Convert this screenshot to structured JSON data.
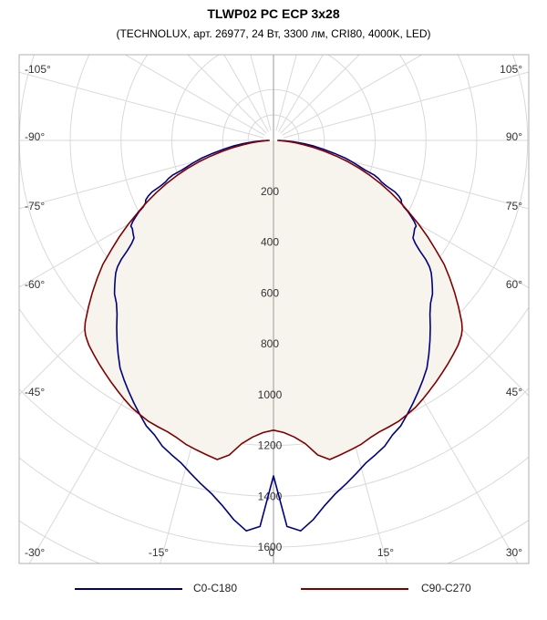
{
  "chart_data": {
    "type": "polar",
    "title": "TLWP02 PC ECP 3x28",
    "subtitle": "(TECHNOLUX, арт. 26977, 24 Вт, 3300 лм, CRI80, 4000K, LED)",
    "radial_ticks": [
      "200",
      "400",
      "600",
      "800",
      "1000",
      "1200",
      "1400",
      "1600"
    ],
    "radial_max": 1600,
    "angle_labels": {
      "left": [
        "-105°",
        "-90°",
        "-75°",
        "-60°",
        "-45°",
        "-30°"
      ],
      "right": [
        "105°",
        "90°",
        "75°",
        "60°",
        "45°",
        "30°"
      ],
      "bottom": [
        "-15°",
        "0",
        "15°"
      ]
    },
    "series": [
      {
        "name": "C0-C180",
        "color": "#00007f",
        "points": [
          [
            -90,
            20
          ],
          [
            -88,
            45
          ],
          [
            -86,
            80
          ],
          [
            -84,
            120
          ],
          [
            -82,
            160
          ],
          [
            -80,
            200
          ],
          [
            -78,
            245
          ],
          [
            -76,
            295
          ],
          [
            -74,
            335
          ],
          [
            -72,
            380
          ],
          [
            -71,
            420
          ],
          [
            -70,
            440
          ],
          [
            -69,
            455
          ],
          [
            -68,
            480
          ],
          [
            -67,
            520
          ],
          [
            -66,
            540
          ],
          [
            -65,
            555
          ],
          [
            -64,
            560
          ],
          [
            -63,
            575
          ],
          [
            -62,
            600
          ],
          [
            -61,
            620
          ],
          [
            -60,
            640
          ],
          [
            -59,
            655
          ],
          [
            -58,
            655
          ],
          [
            -57,
            660
          ],
          [
            -56,
            665
          ],
          [
            -55,
            670
          ],
          [
            -54,
            690
          ],
          [
            -53,
            720
          ],
          [
            -52,
            760
          ],
          [
            -51,
            790
          ],
          [
            -50,
            810
          ],
          [
            -49,
            825
          ],
          [
            -48,
            840
          ],
          [
            -47,
            855
          ],
          [
            -46,
            870
          ],
          [
            -44,
            890
          ],
          [
            -42,
            920
          ],
          [
            -40,
            960
          ],
          [
            -38,
            1000
          ],
          [
            -36,
            1040
          ],
          [
            -34,
            1080
          ],
          [
            -32,
            1110
          ],
          [
            -30,
            1140
          ],
          [
            -28,
            1170
          ],
          [
            -26,
            1200
          ],
          [
            -24,
            1230
          ],
          [
            -22,
            1250
          ],
          [
            -20,
            1280
          ],
          [
            -18,
            1300
          ],
          [
            -16,
            1320
          ],
          [
            -14,
            1350
          ],
          [
            -12,
            1380
          ],
          [
            -10,
            1410
          ],
          [
            -8,
            1450
          ],
          [
            -6,
            1500
          ],
          [
            -4,
            1540
          ],
          [
            -2,
            1520
          ],
          [
            0,
            1320
          ],
          [
            2,
            1520
          ],
          [
            4,
            1540
          ],
          [
            6,
            1500
          ],
          [
            8,
            1450
          ],
          [
            10,
            1410
          ],
          [
            12,
            1380
          ],
          [
            14,
            1350
          ],
          [
            16,
            1320
          ],
          [
            18,
            1300
          ],
          [
            20,
            1280
          ],
          [
            22,
            1250
          ],
          [
            24,
            1230
          ],
          [
            26,
            1200
          ],
          [
            28,
            1170
          ],
          [
            30,
            1140
          ],
          [
            32,
            1110
          ],
          [
            34,
            1080
          ],
          [
            36,
            1040
          ],
          [
            38,
            1000
          ],
          [
            40,
            960
          ],
          [
            42,
            920
          ],
          [
            44,
            890
          ],
          [
            46,
            870
          ],
          [
            47,
            855
          ],
          [
            48,
            840
          ],
          [
            49,
            825
          ],
          [
            50,
            810
          ],
          [
            51,
            790
          ],
          [
            52,
            760
          ],
          [
            53,
            720
          ],
          [
            54,
            690
          ],
          [
            55,
            670
          ],
          [
            56,
            665
          ],
          [
            57,
            660
          ],
          [
            58,
            655
          ],
          [
            59,
            655
          ],
          [
            60,
            640
          ],
          [
            61,
            620
          ],
          [
            62,
            600
          ],
          [
            63,
            575
          ],
          [
            64,
            560
          ],
          [
            65,
            555
          ],
          [
            66,
            540
          ],
          [
            67,
            520
          ],
          [
            68,
            480
          ],
          [
            69,
            455
          ],
          [
            70,
            440
          ],
          [
            71,
            420
          ],
          [
            72,
            380
          ],
          [
            74,
            335
          ],
          [
            76,
            295
          ],
          [
            78,
            245
          ],
          [
            80,
            200
          ],
          [
            82,
            160
          ],
          [
            84,
            120
          ],
          [
            86,
            80
          ],
          [
            88,
            45
          ],
          [
            90,
            20
          ]
        ]
      },
      {
        "name": "C90-C270",
        "color": "#7f0000",
        "points": [
          [
            -90,
            15
          ],
          [
            -88,
            30
          ],
          [
            -86,
            55
          ],
          [
            -84,
            85
          ],
          [
            -82,
            120
          ],
          [
            -80,
            160
          ],
          [
            -78,
            205
          ],
          [
            -76,
            255
          ],
          [
            -74,
            305
          ],
          [
            -72,
            355
          ],
          [
            -70,
            405
          ],
          [
            -68,
            455
          ],
          [
            -66,
            505
          ],
          [
            -64,
            555
          ],
          [
            -62,
            605
          ],
          [
            -60,
            660
          ],
          [
            -58,
            715
          ],
          [
            -56,
            770
          ],
          [
            -54,
            830
          ],
          [
            -52,
            880
          ],
          [
            -50,
            930
          ],
          [
            -48,
            980
          ],
          [
            -46,
            1030
          ],
          [
            -45,
            1050
          ],
          [
            -44,
            1065
          ],
          [
            -43,
            1075
          ],
          [
            -42,
            1085
          ],
          [
            -40,
            1100
          ],
          [
            -38,
            1115
          ],
          [
            -36,
            1130
          ],
          [
            -34,
            1145
          ],
          [
            -32,
            1160
          ],
          [
            -30,
            1175
          ],
          [
            -28,
            1190
          ],
          [
            -26,
            1200
          ],
          [
            -24,
            1210
          ],
          [
            -22,
            1215
          ],
          [
            -20,
            1220
          ],
          [
            -18,
            1230
          ],
          [
            -16,
            1245
          ],
          [
            -14,
            1255
          ],
          [
            -12,
            1265
          ],
          [
            -10,
            1275
          ],
          [
            -8,
            1250
          ],
          [
            -6,
            1200
          ],
          [
            -4,
            1170
          ],
          [
            -2,
            1150
          ],
          [
            0,
            1140
          ],
          [
            2,
            1150
          ],
          [
            4,
            1170
          ],
          [
            6,
            1200
          ],
          [
            8,
            1250
          ],
          [
            10,
            1275
          ],
          [
            12,
            1265
          ],
          [
            14,
            1255
          ],
          [
            16,
            1245
          ],
          [
            18,
            1230
          ],
          [
            20,
            1220
          ],
          [
            22,
            1215
          ],
          [
            24,
            1210
          ],
          [
            26,
            1200
          ],
          [
            28,
            1190
          ],
          [
            30,
            1175
          ],
          [
            32,
            1160
          ],
          [
            34,
            1145
          ],
          [
            36,
            1130
          ],
          [
            38,
            1115
          ],
          [
            40,
            1100
          ],
          [
            42,
            1085
          ],
          [
            43,
            1075
          ],
          [
            44,
            1065
          ],
          [
            45,
            1050
          ],
          [
            46,
            1030
          ],
          [
            48,
            980
          ],
          [
            50,
            930
          ],
          [
            52,
            880
          ],
          [
            54,
            830
          ],
          [
            56,
            770
          ],
          [
            58,
            715
          ],
          [
            60,
            660
          ],
          [
            62,
            605
          ],
          [
            64,
            555
          ],
          [
            66,
            505
          ],
          [
            68,
            455
          ],
          [
            70,
            405
          ],
          [
            72,
            355
          ],
          [
            74,
            305
          ],
          [
            76,
            255
          ],
          [
            78,
            205
          ],
          [
            80,
            160
          ],
          [
            82,
            120
          ],
          [
            84,
            85
          ],
          [
            86,
            55
          ],
          [
            88,
            30
          ],
          [
            90,
            15
          ]
        ]
      }
    ],
    "fill_color": "#f7f4ee",
    "grid": true
  },
  "legend": {
    "items": [
      {
        "label": "C0-C180",
        "color": "#00007f"
      },
      {
        "label": "C90-C270",
        "color": "#7f0000"
      }
    ]
  }
}
